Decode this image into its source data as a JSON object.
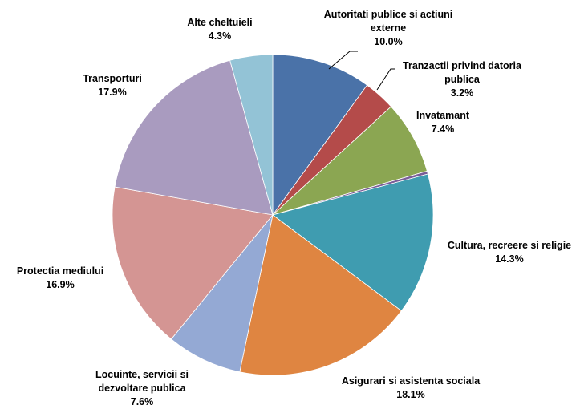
{
  "chart_data": {
    "type": "pie",
    "title": "",
    "start_angle_deg": 0,
    "direction": "clockwise",
    "slices": [
      {
        "name": "Autoritati publice si actiuni externe",
        "label_lines": [
          "Autoritati publice si actiuni",
          "externe"
        ],
        "value": 10.0,
        "value_label": "10.0%",
        "color": "#4A72A8"
      },
      {
        "name": "Tranzactii privind datoria publica",
        "label_lines": [
          "Tranzactii privind datoria",
          "publica"
        ],
        "value": 3.2,
        "value_label": "3.2%",
        "color": "#B44B4A"
      },
      {
        "name": "Invatamant",
        "label_lines": [
          "Invatamant"
        ],
        "value": 7.4,
        "value_label": "7.4%",
        "color": "#8BA652"
      },
      {
        "name": "",
        "label_lines": [],
        "value": 0.3,
        "value_label": "",
        "color": "#7A5E98"
      },
      {
        "name": "Cultura, recreere si religie",
        "label_lines": [
          "Cultura, recreere si religie"
        ],
        "value": 14.3,
        "value_label": "14.3%",
        "color": "#3F9CB0"
      },
      {
        "name": "Asigurari si asistenta sociala",
        "label_lines": [
          "Asigurari si asistenta sociala"
        ],
        "value": 18.1,
        "value_label": "18.1%",
        "color": "#DF8541"
      },
      {
        "name": "Locuinte, servicii si dezvoltare publica",
        "label_lines": [
          "Locuinte, servicii si",
          "dezvoltare publica"
        ],
        "value": 7.6,
        "value_label": "7.6%",
        "color": "#94A9D4"
      },
      {
        "name": "Protectia mediului",
        "label_lines": [
          "Protectia mediului"
        ],
        "value": 16.9,
        "value_label": "16.9%",
        "color": "#D49593"
      },
      {
        "name": "Transporturi",
        "label_lines": [
          "Transporturi"
        ],
        "value": 17.9,
        "value_label": "17.9%",
        "color": "#A99BBF"
      },
      {
        "name": "Alte cheltuieli",
        "label_lines": [
          "Alte cheltuieli"
        ],
        "value": 4.3,
        "value_label": "4.3%",
        "color": "#93C3D6"
      }
    ],
    "legend": "none",
    "data_labels": "outside"
  }
}
